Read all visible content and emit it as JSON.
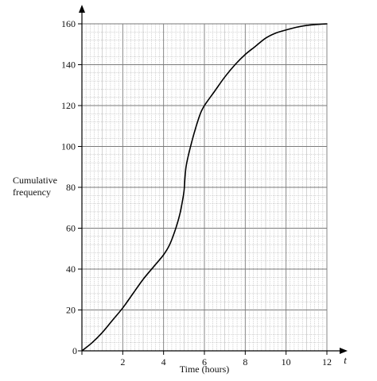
{
  "chart_data": {
    "type": "line",
    "title": "",
    "xlabel": "Time (hours)",
    "x_axis_symbol": "t",
    "ylabel_lines": [
      "Cumulative",
      "frequency"
    ],
    "xlim": [
      0,
      12
    ],
    "ylim": [
      0,
      160
    ],
    "x_ticks": [
      0,
      2,
      4,
      6,
      8,
      10,
      12
    ],
    "y_ticks": [
      0,
      20,
      40,
      60,
      80,
      100,
      120,
      140,
      160
    ],
    "x_ticks_text": [
      "0",
      "2",
      "4",
      "6",
      "8",
      "10",
      "12"
    ],
    "y_ticks_text": [
      "20",
      "40",
      "60",
      "80",
      "100",
      "120",
      "140",
      "160"
    ],
    "origin_label": "0",
    "grid": true,
    "grid_minor_step": [
      0.2,
      4
    ],
    "colors": {
      "grid_minor": "#a8a8a8",
      "grid_major": "#7a7a7a",
      "curve": "#000000",
      "axis": "#000000"
    },
    "series": [
      {
        "x": [
          0,
          0.5,
          1,
          1.5,
          2,
          2.5,
          3,
          3.5,
          4,
          4.3,
          4.6,
          4.8,
          4.9,
          5.0,
          5.05,
          5.1,
          5.2,
          5.4,
          5.6,
          5.8,
          6,
          6.5,
          7,
          7.5,
          8,
          8.5,
          9,
          9.5,
          10,
          10.5,
          11,
          11.5,
          12
        ],
        "y": [
          0,
          4,
          9,
          15,
          21,
          28,
          35,
          41,
          47,
          52,
          60,
          67,
          72,
          78,
          85,
          90,
          95,
          103,
          110,
          116,
          120,
          127,
          134,
          140,
          145,
          149,
          153,
          155.5,
          157,
          158.3,
          159.2,
          159.7,
          160
        ]
      }
    ]
  }
}
